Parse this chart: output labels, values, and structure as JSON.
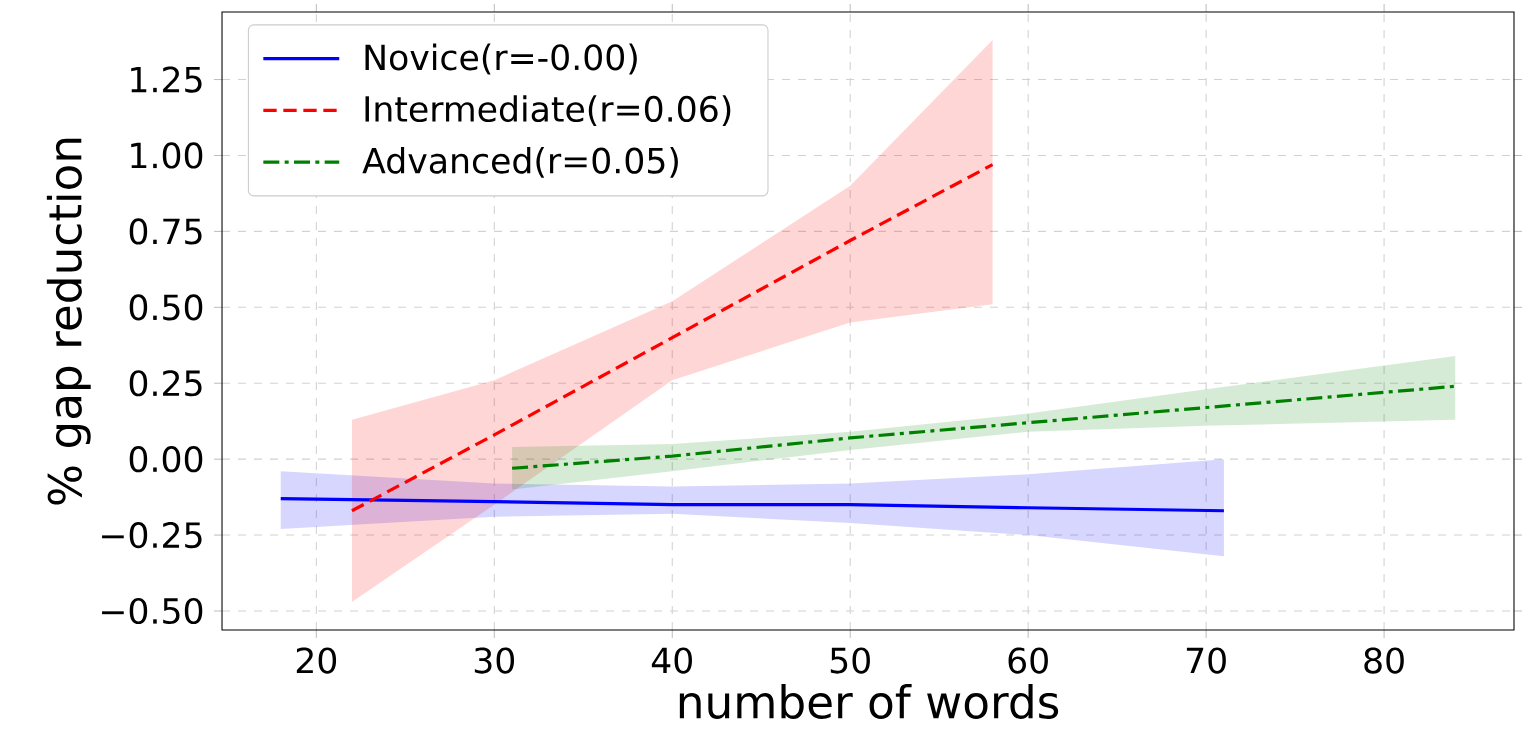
{
  "chart_data": {
    "type": "line",
    "xlabel": "number of words",
    "ylabel": "% gap reduction",
    "xlim": [
      14.7,
      87.3
    ],
    "ylim": [
      -0.5625,
      1.4725
    ],
    "xticks": [
      20,
      30,
      40,
      50,
      60,
      70,
      80
    ],
    "yticks": [
      {
        "value": -0.5,
        "label": "−0.50"
      },
      {
        "value": -0.25,
        "label": "−0.25"
      },
      {
        "value": 0,
        "label": "0.00"
      },
      {
        "value": 0.25,
        "label": "0.25"
      },
      {
        "value": 0.5,
        "label": "0.50"
      },
      {
        "value": 0.75,
        "label": "0.75"
      },
      {
        "value": 1.0,
        "label": "1.00"
      },
      {
        "value": 1.25,
        "label": "1.25"
      }
    ],
    "grid": true,
    "legend": "top left",
    "marker": "none",
    "series": [
      {
        "name": "Novice(r=-0.00)",
        "color": "#0000ff",
        "line_style": "solid",
        "x": [
          18,
          30,
          40,
          50,
          60,
          71
        ],
        "values": [
          -0.13,
          -0.14,
          -0.15,
          -0.15,
          -0.16,
          -0.17
        ],
        "upper": [
          -0.04,
          -0.08,
          -0.09,
          -0.08,
          -0.05,
          0.0
        ],
        "lower": [
          -0.23,
          -0.19,
          -0.18,
          -0.21,
          -0.25,
          -0.32
        ]
      },
      {
        "name": "Intermediate(r=0.06)",
        "color": "#ff0000",
        "line_style": "dashed",
        "x": [
          22,
          30,
          40,
          50,
          58
        ],
        "values": [
          -0.17,
          0.08,
          0.4,
          0.72,
          0.97
        ],
        "upper": [
          0.13,
          0.26,
          0.52,
          0.9,
          1.38
        ],
        "lower": [
          -0.47,
          -0.15,
          0.26,
          0.45,
          0.51
        ]
      },
      {
        "name": "Advanced(r=0.05)",
        "color": "#008000",
        "line_style": "dashdot",
        "x": [
          31,
          40,
          50,
          60,
          70,
          84
        ],
        "values": [
          -0.03,
          0.01,
          0.07,
          0.12,
          0.17,
          0.24
        ],
        "upper": [
          0.04,
          0.05,
          0.09,
          0.15,
          0.23,
          0.34
        ],
        "lower": [
          -0.1,
          -0.04,
          0.03,
          0.09,
          0.11,
          0.13
        ]
      }
    ]
  }
}
